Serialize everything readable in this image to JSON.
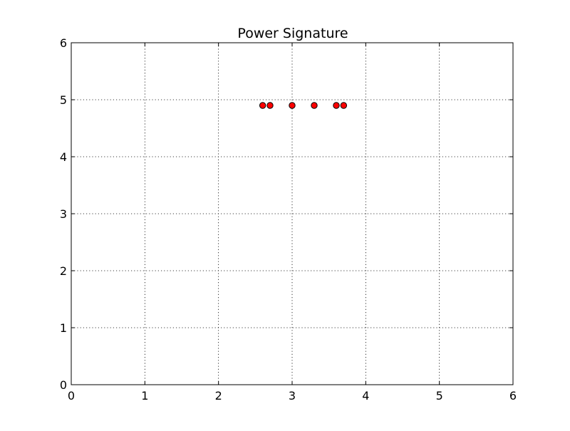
{
  "chart_data": {
    "type": "scatter",
    "title": "Power Signature",
    "xlabel": "",
    "ylabel": "",
    "xlim": [
      0,
      6
    ],
    "ylim": [
      0,
      6
    ],
    "x_ticks": [
      "0",
      "1",
      "2",
      "3",
      "4",
      "5",
      "6"
    ],
    "y_ticks": [
      "0",
      "1",
      "2",
      "3",
      "4",
      "5",
      "6"
    ],
    "grid": true,
    "series": [
      {
        "color": "#ff0000",
        "marker": "circle",
        "points": [
          {
            "x": 2.6,
            "y": 4.9
          },
          {
            "x": 2.7,
            "y": 4.9
          },
          {
            "x": 3.0,
            "y": 4.9
          },
          {
            "x": 3.3,
            "y": 4.9
          },
          {
            "x": 3.6,
            "y": 4.9
          },
          {
            "x": 3.7,
            "y": 4.9
          }
        ]
      }
    ]
  }
}
